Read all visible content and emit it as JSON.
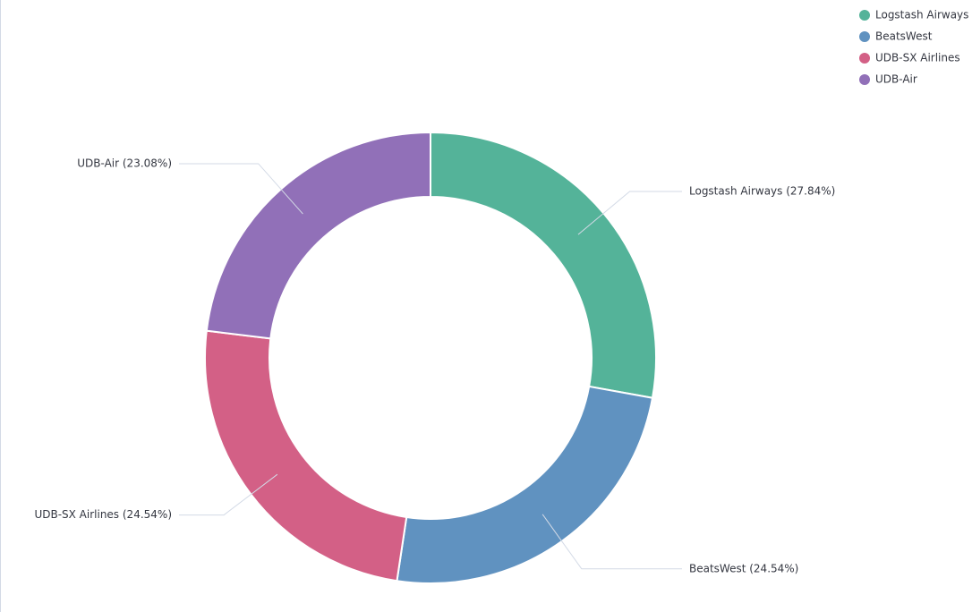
{
  "chart_data": {
    "type": "donut",
    "categories": [
      "Logstash Airways",
      "BeatsWest",
      "UDB-SX Airlines",
      "UDB-Air"
    ],
    "values": [
      27.84,
      24.54,
      24.54,
      23.08
    ],
    "value_labels": [
      "Logstash Airways (27.84%)",
      "BeatsWest (24.54%)",
      "UDB-SX Airlines (24.54%)",
      "UDB-Air (23.08%)"
    ],
    "colors": [
      "#54b399",
      "#6092c0",
      "#d36086",
      "#9170b8"
    ],
    "legend": "top-right"
  }
}
